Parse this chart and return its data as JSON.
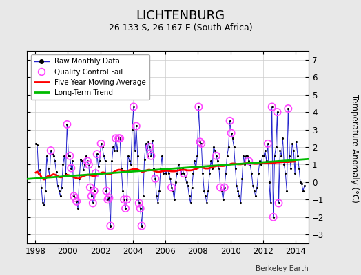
{
  "title": "LICHTENBURG",
  "subtitle": "26.133 S, 26.167 E (South Africa)",
  "ylabel": "Temperature Anomaly (°C)",
  "attribution": "Berkeley Earth",
  "ylim": [
    -3.5,
    7.5
  ],
  "xlim": [
    1997.5,
    2014.8
  ],
  "yticks": [
    -3,
    -2,
    -1,
    0,
    1,
    2,
    3,
    4,
    5,
    6,
    7
  ],
  "xticks": [
    1998,
    2000,
    2002,
    2004,
    2006,
    2008,
    2010,
    2012,
    2014
  ],
  "bg_color": "#e8e8e8",
  "plot_bg_color": "#ffffff",
  "raw_line_color": "#2222cc",
  "raw_dot_color": "#000000",
  "qc_color": "#ff44ff",
  "moving_avg_color": "#ff0000",
  "trend_color": "#00bb00",
  "raw_monthly": [
    [
      1998.042,
      2.2
    ],
    [
      1998.125,
      2.1
    ],
    [
      1998.208,
      0.5
    ],
    [
      1998.292,
      0.7
    ],
    [
      1998.375,
      -0.3
    ],
    [
      1998.458,
      -1.2
    ],
    [
      1998.542,
      -1.3
    ],
    [
      1998.625,
      -0.5
    ],
    [
      1998.708,
      1.5
    ],
    [
      1998.792,
      0.8
    ],
    [
      1998.875,
      0.4
    ],
    [
      1998.958,
      1.8
    ],
    [
      1999.042,
      1.6
    ],
    [
      1999.125,
      1.5
    ],
    [
      1999.208,
      1.2
    ],
    [
      1999.292,
      0.6
    ],
    [
      1999.375,
      -0.2
    ],
    [
      1999.458,
      -0.5
    ],
    [
      1999.542,
      -0.8
    ],
    [
      1999.625,
      -0.3
    ],
    [
      1999.708,
      1.0
    ],
    [
      1999.792,
      1.5
    ],
    [
      1999.875,
      0.5
    ],
    [
      1999.958,
      3.3
    ],
    [
      2000.042,
      1.5
    ],
    [
      2000.125,
      1.5
    ],
    [
      2000.208,
      0.8
    ],
    [
      2000.292,
      1.2
    ],
    [
      2000.375,
      -0.8
    ],
    [
      2000.458,
      -0.9
    ],
    [
      2000.542,
      -1.1
    ],
    [
      2000.625,
      -1.5
    ],
    [
      2000.708,
      0.2
    ],
    [
      2000.792,
      1.3
    ],
    [
      2000.875,
      1.2
    ],
    [
      2000.958,
      0.7
    ],
    [
      2001.042,
      1.0
    ],
    [
      2001.125,
      1.5
    ],
    [
      2001.208,
      1.2
    ],
    [
      2001.292,
      1.0
    ],
    [
      2001.375,
      -0.3
    ],
    [
      2001.458,
      -0.8
    ],
    [
      2001.542,
      -1.2
    ],
    [
      2001.625,
      -0.5
    ],
    [
      2001.708,
      0.5
    ],
    [
      2001.792,
      1.6
    ],
    [
      2001.875,
      0.9
    ],
    [
      2001.958,
      1.2
    ],
    [
      2002.042,
      2.2
    ],
    [
      2002.125,
      2.0
    ],
    [
      2002.208,
      1.5
    ],
    [
      2002.292,
      1.2
    ],
    [
      2002.375,
      -0.5
    ],
    [
      2002.458,
      -1.0
    ],
    [
      2002.542,
      -0.9
    ],
    [
      2002.625,
      -2.5
    ],
    [
      2002.708,
      1.2
    ],
    [
      2002.792,
      2.0
    ],
    [
      2002.875,
      1.8
    ],
    [
      2002.958,
      2.5
    ],
    [
      2003.042,
      1.8
    ],
    [
      2003.125,
      2.5
    ],
    [
      2003.208,
      2.5
    ],
    [
      2003.292,
      0.8
    ],
    [
      2003.375,
      -0.5
    ],
    [
      2003.458,
      -1.0
    ],
    [
      2003.542,
      -1.5
    ],
    [
      2003.625,
      -1.0
    ],
    [
      2003.708,
      1.5
    ],
    [
      2003.792,
      1.2
    ],
    [
      2003.875,
      1.0
    ],
    [
      2003.958,
      3.0
    ],
    [
      2004.042,
      4.3
    ],
    [
      2004.125,
      1.8
    ],
    [
      2004.208,
      3.2
    ],
    [
      2004.292,
      1.5
    ],
    [
      2004.375,
      -1.2
    ],
    [
      2004.458,
      -1.5
    ],
    [
      2004.542,
      -2.5
    ],
    [
      2004.625,
      -0.8
    ],
    [
      2004.708,
      1.3
    ],
    [
      2004.792,
      2.2
    ],
    [
      2004.875,
      1.5
    ],
    [
      2004.958,
      2.3
    ],
    [
      2005.042,
      2.0
    ],
    [
      2005.125,
      1.5
    ],
    [
      2005.208,
      2.4
    ],
    [
      2005.292,
      0.8
    ],
    [
      2005.375,
      0.2
    ],
    [
      2005.458,
      -0.8
    ],
    [
      2005.542,
      -1.2
    ],
    [
      2005.625,
      -0.5
    ],
    [
      2005.708,
      0.8
    ],
    [
      2005.792,
      1.5
    ],
    [
      2005.875,
      0.5
    ],
    [
      2005.958,
      0.8
    ],
    [
      2006.042,
      0.5
    ],
    [
      2006.125,
      0.8
    ],
    [
      2006.208,
      0.5
    ],
    [
      2006.292,
      0.2
    ],
    [
      2006.375,
      -0.3
    ],
    [
      2006.458,
      -0.5
    ],
    [
      2006.542,
      -1.0
    ],
    [
      2006.625,
      0.0
    ],
    [
      2006.708,
      0.5
    ],
    [
      2006.792,
      1.0
    ],
    [
      2006.875,
      0.8
    ],
    [
      2006.958,
      0.5
    ],
    [
      2007.042,
      0.8
    ],
    [
      2007.125,
      0.5
    ],
    [
      2007.208,
      0.3
    ],
    [
      2007.292,
      0.0
    ],
    [
      2007.375,
      -0.2
    ],
    [
      2007.458,
      -0.8
    ],
    [
      2007.542,
      -1.2
    ],
    [
      2007.625,
      -0.3
    ],
    [
      2007.708,
      0.5
    ],
    [
      2007.792,
      1.2
    ],
    [
      2007.875,
      0.8
    ],
    [
      2007.958,
      1.5
    ],
    [
      2008.042,
      4.3
    ],
    [
      2008.125,
      2.3
    ],
    [
      2008.208,
      2.2
    ],
    [
      2008.292,
      0.5
    ],
    [
      2008.375,
      -0.5
    ],
    [
      2008.458,
      -0.8
    ],
    [
      2008.542,
      -1.2
    ],
    [
      2008.625,
      -0.5
    ],
    [
      2008.708,
      0.5
    ],
    [
      2008.792,
      1.2
    ],
    [
      2008.875,
      0.8
    ],
    [
      2008.958,
      2.0
    ],
    [
      2009.042,
      1.8
    ],
    [
      2009.125,
      1.5
    ],
    [
      2009.208,
      1.2
    ],
    [
      2009.292,
      0.8
    ],
    [
      2009.375,
      -0.3
    ],
    [
      2009.458,
      -0.5
    ],
    [
      2009.542,
      -1.0
    ],
    [
      2009.625,
      -0.3
    ],
    [
      2009.708,
      0.5
    ],
    [
      2009.792,
      1.5
    ],
    [
      2009.875,
      2.0
    ],
    [
      2009.958,
      3.5
    ],
    [
      2010.042,
      2.8
    ],
    [
      2010.125,
      2.5
    ],
    [
      2010.208,
      2.0
    ],
    [
      2010.292,
      0.8
    ],
    [
      2010.375,
      -0.2
    ],
    [
      2010.458,
      -0.5
    ],
    [
      2010.542,
      -0.8
    ],
    [
      2010.625,
      -1.2
    ],
    [
      2010.708,
      0.2
    ],
    [
      2010.792,
      1.5
    ],
    [
      2010.875,
      1.0
    ],
    [
      2010.958,
      1.5
    ],
    [
      2011.042,
      1.5
    ],
    [
      2011.125,
      1.2
    ],
    [
      2011.208,
      1.0
    ],
    [
      2011.292,
      0.5
    ],
    [
      2011.375,
      -0.2
    ],
    [
      2011.458,
      -0.5
    ],
    [
      2011.542,
      -0.8
    ],
    [
      2011.625,
      -0.3
    ],
    [
      2011.708,
      0.5
    ],
    [
      2011.792,
      1.2
    ],
    [
      2011.875,
      1.0
    ],
    [
      2011.958,
      1.5
    ],
    [
      2012.042,
      1.5
    ],
    [
      2012.125,
      1.8
    ],
    [
      2012.208,
      1.2
    ],
    [
      2012.292,
      2.2
    ],
    [
      2012.375,
      0.0
    ],
    [
      2012.458,
      -1.2
    ],
    [
      2012.542,
      4.3
    ],
    [
      2012.625,
      -2.0
    ],
    [
      2012.708,
      1.5
    ],
    [
      2012.792,
      2.0
    ],
    [
      2012.875,
      4.0
    ],
    [
      2012.958,
      -1.2
    ],
    [
      2013.042,
      1.8
    ],
    [
      2013.125,
      1.5
    ],
    [
      2013.208,
      2.5
    ],
    [
      2013.292,
      1.0
    ],
    [
      2013.375,
      0.5
    ],
    [
      2013.458,
      -0.5
    ],
    [
      2013.542,
      4.2
    ],
    [
      2013.625,
      1.5
    ],
    [
      2013.708,
      0.8
    ],
    [
      2013.792,
      2.2
    ],
    [
      2013.875,
      1.8
    ],
    [
      2013.958,
      0.5
    ],
    [
      2014.042,
      2.3
    ],
    [
      2014.125,
      1.5
    ],
    [
      2014.208,
      0.8
    ],
    [
      2014.292,
      0.0
    ],
    [
      2014.375,
      -0.1
    ],
    [
      2014.458,
      -0.5
    ],
    [
      2014.542,
      -0.2
    ]
  ],
  "qc_fail": [
    [
      1998.958,
      1.8
    ],
    [
      1999.958,
      3.3
    ],
    [
      2000.125,
      1.5
    ],
    [
      2000.208,
      0.8
    ],
    [
      2000.375,
      -0.8
    ],
    [
      2000.458,
      -0.9
    ],
    [
      2000.542,
      -1.1
    ],
    [
      2001.208,
      1.2
    ],
    [
      2001.292,
      1.0
    ],
    [
      2001.375,
      -0.3
    ],
    [
      2001.458,
      -0.8
    ],
    [
      2001.542,
      -1.2
    ],
    [
      2001.625,
      -0.5
    ],
    [
      2001.708,
      0.5
    ],
    [
      2001.792,
      1.6
    ],
    [
      2002.042,
      2.2
    ],
    [
      2002.375,
      -0.5
    ],
    [
      2002.458,
      -1.0
    ],
    [
      2002.542,
      -0.9
    ],
    [
      2002.625,
      -2.5
    ],
    [
      2002.958,
      2.5
    ],
    [
      2003.125,
      2.5
    ],
    [
      2003.208,
      2.5
    ],
    [
      2003.458,
      -1.0
    ],
    [
      2003.542,
      -1.5
    ],
    [
      2003.625,
      -1.0
    ],
    [
      2004.042,
      4.3
    ],
    [
      2004.208,
      3.2
    ],
    [
      2004.375,
      -1.2
    ],
    [
      2004.458,
      -1.5
    ],
    [
      2004.542,
      -2.5
    ],
    [
      2005.042,
      2.0
    ],
    [
      2005.125,
      1.5
    ],
    [
      2005.375,
      0.2
    ],
    [
      2006.375,
      -0.3
    ],
    [
      2007.125,
      0.5
    ],
    [
      2008.042,
      4.3
    ],
    [
      2008.125,
      2.3
    ],
    [
      2008.208,
      2.2
    ],
    [
      2009.125,
      1.5
    ],
    [
      2009.375,
      -0.3
    ],
    [
      2009.625,
      -0.3
    ],
    [
      2009.958,
      3.5
    ],
    [
      2010.042,
      2.8
    ],
    [
      2011.125,
      1.2
    ],
    [
      2012.292,
      2.2
    ],
    [
      2012.542,
      4.3
    ],
    [
      2012.625,
      -2.0
    ],
    [
      2012.875,
      4.0
    ],
    [
      2012.958,
      -1.2
    ],
    [
      2013.542,
      4.2
    ]
  ],
  "trend_line": [
    [
      1997.5,
      0.18
    ],
    [
      2014.8,
      1.32
    ]
  ],
  "moving_avg": [
    [
      1998.042,
      0.55
    ],
    [
      1998.125,
      0.6
    ],
    [
      1998.208,
      0.5
    ],
    [
      1998.292,
      0.45
    ],
    [
      1998.375,
      0.3
    ],
    [
      1998.458,
      0.2
    ],
    [
      1998.542,
      0.15
    ],
    [
      1998.625,
      0.2
    ],
    [
      1998.708,
      0.3
    ],
    [
      1998.792,
      0.35
    ],
    [
      1998.875,
      0.35
    ],
    [
      1998.958,
      0.38
    ],
    [
      1999.042,
      0.42
    ],
    [
      1999.125,
      0.45
    ],
    [
      1999.208,
      0.43
    ],
    [
      1999.292,
      0.4
    ],
    [
      1999.375,
      0.35
    ],
    [
      1999.458,
      0.3
    ],
    [
      1999.542,
      0.28
    ],
    [
      1999.625,
      0.28
    ],
    [
      1999.708,
      0.32
    ],
    [
      1999.792,
      0.35
    ],
    [
      1999.875,
      0.38
    ],
    [
      1999.958,
      0.42
    ],
    [
      2000.042,
      0.4
    ],
    [
      2000.125,
      0.38
    ],
    [
      2000.208,
      0.35
    ],
    [
      2000.292,
      0.32
    ],
    [
      2000.375,
      0.28
    ],
    [
      2000.458,
      0.25
    ],
    [
      2000.542,
      0.22
    ],
    [
      2000.625,
      0.2
    ],
    [
      2000.708,
      0.22
    ],
    [
      2000.792,
      0.28
    ],
    [
      2000.875,
      0.32
    ],
    [
      2000.958,
      0.35
    ],
    [
      2001.042,
      0.38
    ],
    [
      2001.125,
      0.4
    ],
    [
      2001.208,
      0.42
    ],
    [
      2001.292,
      0.42
    ],
    [
      2001.375,
      0.4
    ],
    [
      2001.458,
      0.38
    ],
    [
      2001.542,
      0.35
    ],
    [
      2001.625,
      0.35
    ],
    [
      2001.708,
      0.38
    ],
    [
      2001.792,
      0.42
    ],
    [
      2001.875,
      0.45
    ],
    [
      2001.958,
      0.48
    ],
    [
      2002.042,
      0.52
    ],
    [
      2002.125,
      0.55
    ],
    [
      2002.208,
      0.55
    ],
    [
      2002.292,
      0.52
    ],
    [
      2002.375,
      0.48
    ],
    [
      2002.458,
      0.45
    ],
    [
      2002.542,
      0.45
    ],
    [
      2002.625,
      0.45
    ],
    [
      2002.708,
      0.5
    ],
    [
      2002.792,
      0.55
    ],
    [
      2002.875,
      0.6
    ],
    [
      2002.958,
      0.65
    ],
    [
      2003.042,
      0.68
    ],
    [
      2003.125,
      0.7
    ],
    [
      2003.208,
      0.7
    ],
    [
      2003.292,
      0.68
    ],
    [
      2003.375,
      0.65
    ],
    [
      2003.458,
      0.62
    ],
    [
      2003.542,
      0.6
    ],
    [
      2003.625,
      0.6
    ],
    [
      2003.708,
      0.65
    ],
    [
      2003.792,
      0.68
    ],
    [
      2003.875,
      0.7
    ],
    [
      2003.958,
      0.72
    ],
    [
      2004.042,
      0.75
    ],
    [
      2004.125,
      0.75
    ],
    [
      2004.208,
      0.75
    ],
    [
      2004.292,
      0.72
    ],
    [
      2004.375,
      0.68
    ],
    [
      2004.458,
      0.65
    ],
    [
      2004.542,
      0.6
    ],
    [
      2004.625,
      0.6
    ],
    [
      2004.708,
      0.62
    ],
    [
      2004.792,
      0.65
    ],
    [
      2004.875,
      0.68
    ],
    [
      2004.958,
      0.7
    ],
    [
      2005.042,
      0.7
    ],
    [
      2005.125,
      0.68
    ],
    [
      2005.208,
      0.68
    ],
    [
      2005.292,
      0.65
    ],
    [
      2005.375,
      0.62
    ],
    [
      2005.458,
      0.6
    ],
    [
      2005.542,
      0.58
    ],
    [
      2005.625,
      0.58
    ],
    [
      2005.708,
      0.6
    ],
    [
      2005.792,
      0.62
    ],
    [
      2005.875,
      0.63
    ],
    [
      2005.958,
      0.65
    ],
    [
      2006.042,
      0.65
    ],
    [
      2006.125,
      0.65
    ],
    [
      2006.208,
      0.65
    ],
    [
      2006.292,
      0.63
    ],
    [
      2006.375,
      0.62
    ],
    [
      2006.458,
      0.62
    ],
    [
      2006.542,
      0.62
    ],
    [
      2006.625,
      0.63
    ],
    [
      2006.708,
      0.65
    ],
    [
      2006.792,
      0.67
    ],
    [
      2006.875,
      0.68
    ],
    [
      2006.958,
      0.7
    ],
    [
      2007.042,
      0.7
    ],
    [
      2007.125,
      0.7
    ],
    [
      2007.208,
      0.7
    ],
    [
      2007.292,
      0.68
    ],
    [
      2007.375,
      0.67
    ],
    [
      2007.458,
      0.67
    ],
    [
      2007.542,
      0.67
    ],
    [
      2007.625,
      0.68
    ],
    [
      2007.708,
      0.7
    ],
    [
      2007.792,
      0.72
    ],
    [
      2007.875,
      0.75
    ],
    [
      2007.958,
      0.78
    ],
    [
      2008.042,
      0.82
    ],
    [
      2008.125,
      0.85
    ],
    [
      2008.208,
      0.85
    ],
    [
      2008.292,
      0.83
    ],
    [
      2008.375,
      0.8
    ],
    [
      2008.458,
      0.78
    ],
    [
      2008.542,
      0.78
    ],
    [
      2008.625,
      0.78
    ],
    [
      2008.708,
      0.8
    ],
    [
      2008.792,
      0.83
    ],
    [
      2008.875,
      0.85
    ],
    [
      2008.958,
      0.88
    ],
    [
      2009.042,
      0.9
    ],
    [
      2009.125,
      0.92
    ],
    [
      2009.208,
      0.93
    ],
    [
      2009.292,
      0.93
    ],
    [
      2009.375,
      0.92
    ],
    [
      2009.458,
      0.92
    ],
    [
      2009.542,
      0.92
    ],
    [
      2009.625,
      0.93
    ],
    [
      2009.708,
      0.95
    ],
    [
      2009.792,
      0.97
    ],
    [
      2009.875,
      1.0
    ],
    [
      2009.958,
      1.02
    ],
    [
      2010.042,
      1.05
    ],
    [
      2010.125,
      1.06
    ],
    [
      2010.208,
      1.06
    ],
    [
      2010.292,
      1.05
    ],
    [
      2010.375,
      1.03
    ],
    [
      2010.458,
      1.02
    ],
    [
      2010.542,
      1.02
    ],
    [
      2010.625,
      1.02
    ],
    [
      2010.708,
      1.03
    ],
    [
      2010.792,
      1.05
    ],
    [
      2010.875,
      1.06
    ],
    [
      2010.958,
      1.07
    ],
    [
      2011.042,
      1.08
    ],
    [
      2011.125,
      1.08
    ],
    [
      2011.208,
      1.08
    ],
    [
      2011.292,
      1.07
    ],
    [
      2011.375,
      1.06
    ],
    [
      2011.458,
      1.05
    ],
    [
      2011.542,
      1.05
    ],
    [
      2011.625,
      1.05
    ],
    [
      2011.708,
      1.06
    ],
    [
      2011.792,
      1.07
    ],
    [
      2011.875,
      1.08
    ],
    [
      2011.958,
      1.09
    ],
    [
      2012.042,
      1.1
    ],
    [
      2012.125,
      1.1
    ],
    [
      2012.208,
      1.1
    ],
    [
      2012.292,
      1.1
    ],
    [
      2012.375,
      1.1
    ],
    [
      2012.458,
      1.1
    ],
    [
      2012.542,
      1.1
    ],
    [
      2012.625,
      1.1
    ],
    [
      2012.708,
      1.11
    ],
    [
      2012.792,
      1.12
    ],
    [
      2012.875,
      1.13
    ],
    [
      2012.958,
      1.13
    ],
    [
      2013.042,
      1.14
    ],
    [
      2013.125,
      1.14
    ],
    [
      2013.208,
      1.15
    ],
    [
      2013.292,
      1.15
    ],
    [
      2013.375,
      1.15
    ],
    [
      2013.458,
      1.15
    ],
    [
      2013.542,
      1.15
    ],
    [
      2013.625,
      1.16
    ],
    [
      2013.708,
      1.16
    ],
    [
      2013.792,
      1.17
    ],
    [
      2013.875,
      1.17
    ],
    [
      2013.958,
      1.18
    ]
  ]
}
